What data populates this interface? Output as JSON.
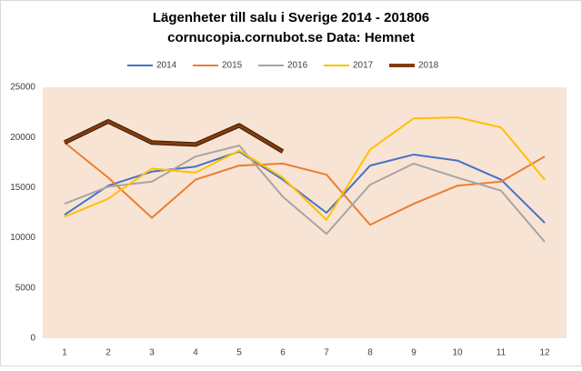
{
  "chart_data": {
    "type": "line",
    "title": "Lägenheter till salu i Sverige 2014 - 201806",
    "subtitle": "cornucopia.cornubot.se Data: Hemnet",
    "categories": [
      1,
      2,
      3,
      4,
      5,
      6,
      7,
      8,
      9,
      10,
      11,
      12
    ],
    "series": [
      {
        "name": "2014",
        "color": "#4472c4",
        "values": [
          12300,
          15200,
          16600,
          17100,
          18600,
          15800,
          12500,
          17200,
          18300,
          17700,
          15800,
          11500
        ]
      },
      {
        "name": "2015",
        "color": "#ed7d31",
        "values": [
          19500,
          16000,
          12000,
          15800,
          17200,
          17400,
          16300,
          11300,
          13400,
          15200,
          15600,
          18100
        ]
      },
      {
        "name": "2016",
        "color": "#a5a5a5",
        "values": [
          13400,
          15100,
          15600,
          18100,
          19200,
          14100,
          10400,
          15300,
          17400,
          16000,
          14700,
          9600
        ]
      },
      {
        "name": "2017",
        "color": "#ffc000",
        "values": [
          12100,
          13900,
          16900,
          16500,
          18700,
          16000,
          11800,
          18800,
          21900,
          22000,
          21000,
          15800
        ]
      },
      {
        "name": "2018",
        "color": "#843c0c",
        "values": [
          19500,
          21600,
          19500,
          19300,
          21200,
          18600,
          null,
          null,
          null,
          null,
          null,
          null
        ]
      }
    ],
    "ylim": [
      0,
      25000
    ],
    "yticks": [
      0,
      5000,
      10000,
      15000,
      20000,
      25000
    ],
    "grid": false,
    "legend": "top",
    "plot_background": "#f8e4d5"
  }
}
